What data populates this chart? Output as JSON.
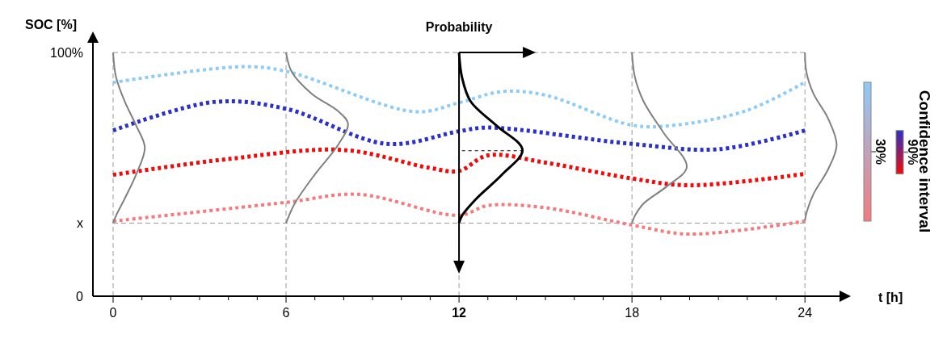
{
  "chart_data": {
    "type": "line",
    "xlabel": "t [h]",
    "ylabel": "SOC [%]",
    "legend_title": "Confidence interval",
    "legend": "right",
    "grid": true,
    "xlim": [
      -0.7,
      25.2
    ],
    "ylim": [
      0,
      104
    ],
    "xticks": [
      0,
      {
        "value": 1,
        "label": null
      },
      {
        "value": 2,
        "label": null
      },
      {
        "value": 3,
        "label": null
      },
      {
        "value": 4,
        "label": null
      },
      {
        "value": 5,
        "label": null
      },
      6,
      {
        "value": 7,
        "label": null
      },
      {
        "value": 8,
        "label": null
      },
      {
        "value": 9,
        "label": null
      },
      {
        "value": 10,
        "label": null
      },
      {
        "value": 11,
        "label": null
      },
      12,
      {
        "value": 13,
        "label": null
      },
      {
        "value": 14,
        "label": null
      },
      {
        "value": 15,
        "label": null
      },
      {
        "value": 16,
        "label": null
      },
      {
        "value": 17,
        "label": null
      },
      18,
      {
        "value": 19,
        "label": null
      },
      {
        "value": 20,
        "label": null
      },
      {
        "value": 21,
        "label": null
      },
      {
        "value": 22,
        "label": null
      },
      {
        "value": 23,
        "label": null
      },
      24
    ],
    "yticks": [
      0,
      {
        "value": 30,
        "label": "x"
      },
      {
        "value": 100,
        "label": "100%"
      }
    ],
    "annotations": [
      {
        "text": "Probability",
        "x": 12,
        "y": 100
      }
    ],
    "ref_lines": [
      {
        "axis": "x",
        "value": 12,
        "color": "#000000",
        "line_style": "solid"
      }
    ],
    "series": [
      {
        "name": "30%",
        "color": "#8ecbf7",
        "line_style": "dotted",
        "x": [
          0,
          4.5,
          6,
          10.5,
          12,
          13.5,
          15,
          18,
          19.5,
          22,
          24
        ],
        "values": [
          87.7,
          94.2,
          92.3,
          75.7,
          79.4,
          84,
          82.5,
          70.2,
          70.2,
          76.3,
          87.8
        ]
      },
      {
        "color": "#f57a7e",
        "line_style": "dotted",
        "x": [
          0,
          6,
          8.5,
          12,
          13,
          15,
          18,
          20,
          24
        ],
        "values": [
          30.8,
          38.5,
          41.8,
          33.2,
          37.2,
          36.3,
          29.2,
          25.5,
          30.8
        ]
      },
      {
        "name": "90%",
        "color": "#2c2fc8",
        "line_style": "dotted",
        "x": [
          0,
          3.5,
          6,
          9.5,
          12,
          13,
          18,
          21,
          24
        ],
        "values": [
          68,
          79.7,
          76.9,
          62.5,
          67.7,
          69.2,
          62.5,
          60.3,
          68
        ]
      },
      {
        "color": "#f20a0a",
        "line_style": "dotted",
        "x": [
          0,
          4,
          8,
          11,
          12,
          13,
          15,
          18,
          20,
          24
        ],
        "values": [
          49.8,
          56.3,
          60,
          52.6,
          51.4,
          57.8,
          54.8,
          48.3,
          45.5,
          50.2
        ]
      },
      {
        "color": "#808080",
        "line_style": "solid",
        "x": [
          0,
          0.1,
          0.4,
          0.8,
          1.1,
          0.8,
          0.4,
          0.1,
          0
        ],
        "values": [
          100,
          90,
          80,
          70,
          61,
          50,
          40,
          33,
          30
        ]
      },
      {
        "color": "#808080",
        "line_style": "solid",
        "x": [
          6,
          6.2,
          6.9,
          7.8,
          8.15,
          7.8,
          7.0,
          6.3,
          6
        ],
        "values": [
          100,
          92,
          83,
          76,
          70.8,
          62,
          50,
          38,
          30
        ]
      },
      {
        "color": "#000000",
        "line_style": "solid",
        "x": [
          12,
          12.1,
          12.4,
          13.3,
          14.2,
          13.5,
          12.6,
          12.1,
          12
        ],
        "values": [
          100,
          90,
          80,
          70,
          60,
          50,
          40,
          33,
          30
        ]
      },
      {
        "color": "#808080",
        "line_style": "solid",
        "x": [
          18,
          18.1,
          18.4,
          19.1,
          19.9,
          19.2,
          18.4,
          18.1,
          18
        ],
        "values": [
          100,
          90,
          80,
          67,
          53,
          45,
          38,
          33,
          30
        ]
      },
      {
        "color": "#808080",
        "line_style": "solid",
        "x": [
          24,
          24.05,
          24.3,
          24.8,
          25.1,
          24.8,
          24.3,
          24.05,
          24
        ],
        "values": [
          100,
          92,
          83,
          73,
          62,
          52,
          42,
          34,
          31
        ]
      },
      {
        "color": "#000000",
        "line_style": "dotted",
        "x": [
          12.1,
          14.2
        ],
        "values": [
          59.7,
          59.7
        ]
      }
    ]
  }
}
